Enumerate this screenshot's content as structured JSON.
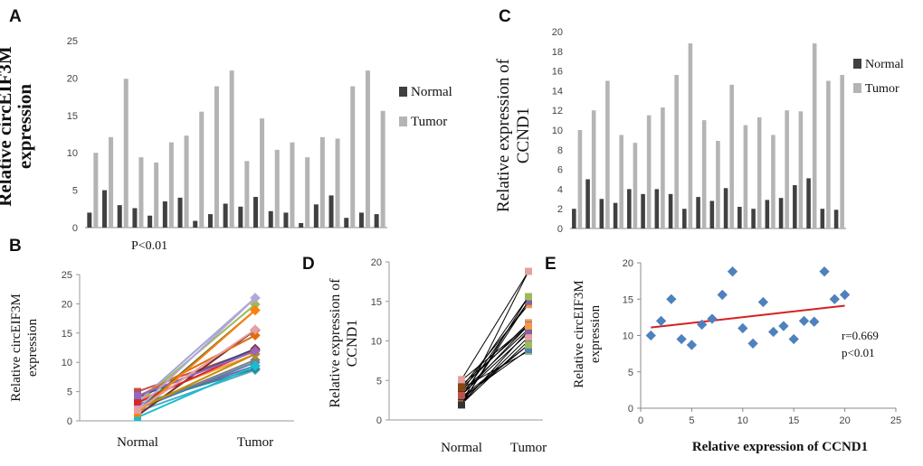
{
  "figure": {
    "panel_labels": [
      "A",
      "B",
      "C",
      "D",
      "E"
    ]
  },
  "chart_data": [
    {
      "id": "A",
      "type": "bar",
      "ylabel": "Relative  circEIF3M expression",
      "ylim": [
        0,
        25
      ],
      "yticks": [
        0,
        5,
        10,
        15,
        20,
        25
      ],
      "annotation": "P<0.01",
      "legend_position": "right",
      "series": [
        {
          "name": "Normal",
          "color": "#404040",
          "values": [
            2,
            5,
            3,
            2.6,
            1.6,
            3.5,
            4,
            0.9,
            1.8,
            3.2,
            2.8,
            4.1,
            2.2,
            2,
            0.6,
            3.1,
            4.3,
            1.3,
            2,
            1.8
          ]
        },
        {
          "name": "Tumor",
          "color": "#b4b4b4",
          "values": [
            10,
            12.1,
            19.9,
            9.4,
            8.7,
            11.4,
            12.3,
            15.5,
            18.9,
            21,
            8.9,
            14.6,
            10.4,
            11.4,
            9.4,
            12.1,
            11.9,
            18.9,
            21,
            15.6
          ]
        }
      ]
    },
    {
      "id": "B",
      "type": "line",
      "ylabel": "Relative  circEIF3M expression",
      "categories": [
        "Normal",
        "Tumor"
      ],
      "ylim": [
        0,
        25
      ],
      "yticks": [
        0,
        5,
        10,
        15,
        20,
        25
      ],
      "paired_values": [
        {
          "normal": 2,
          "tumor": 10,
          "color": "#4f81bd"
        },
        {
          "normal": 5,
          "tumor": 12.1,
          "color": "#c0504d"
        },
        {
          "normal": 3,
          "tumor": 19.9,
          "color": "#9bbb59"
        },
        {
          "normal": 2.6,
          "tumor": 9.4,
          "color": "#8064a2"
        },
        {
          "normal": 1.6,
          "tumor": 8.7,
          "color": "#4bacc6"
        },
        {
          "normal": 3.5,
          "tumor": 11.4,
          "color": "#f79646"
        },
        {
          "normal": 4,
          "tumor": 12.3,
          "color": "#2c4d75"
        },
        {
          "normal": 0.9,
          "tumor": 15.5,
          "color": "#772c2a"
        },
        {
          "normal": 1.8,
          "tumor": 18.9,
          "color": "#5f7530"
        },
        {
          "normal": 3.2,
          "tumor": 21,
          "color": "#a5a5d8"
        },
        {
          "normal": 2.8,
          "tumor": 8.9,
          "color": "#31859c"
        },
        {
          "normal": 4.1,
          "tumor": 14.6,
          "color": "#e46c0a"
        },
        {
          "normal": 2.2,
          "tumor": 10.4,
          "color": "#7f7f7f"
        },
        {
          "normal": 2,
          "tumor": 11.4,
          "color": "#c09100"
        },
        {
          "normal": 0.6,
          "tumor": 9.4,
          "color": "#17becf"
        },
        {
          "normal": 3.1,
          "tumor": 12.1,
          "color": "#d62728"
        },
        {
          "normal": 4.3,
          "tumor": 11.9,
          "color": "#9467bd"
        },
        {
          "normal": 1.3,
          "tumor": 18.9,
          "color": "#ff7f0e"
        },
        {
          "normal": 2,
          "tumor": 21,
          "color": "#b5a6d6"
        },
        {
          "normal": 1.8,
          "tumor": 15.6,
          "color": "#e6a0a0"
        }
      ]
    },
    {
      "id": "C",
      "type": "bar",
      "ylabel": "Relative expression of CCND1",
      "ylim": [
        0,
        20
      ],
      "yticks": [
        0,
        2,
        4,
        6,
        8,
        10,
        12,
        14,
        16,
        18,
        20
      ],
      "legend_position": "right",
      "series": [
        {
          "name": "Normal",
          "color": "#404040",
          "values": [
            2,
            5,
            3,
            2.6,
            4,
            3.5,
            4,
            3.5,
            2,
            3.2,
            2.8,
            4.1,
            2.2,
            2,
            2.9,
            3.1,
            4.4,
            5.1,
            2,
            1.9
          ]
        },
        {
          "name": "Tumor",
          "color": "#b4b4b4",
          "values": [
            10,
            12,
            15,
            9.5,
            8.7,
            11.5,
            12.3,
            15.6,
            18.8,
            11,
            8.9,
            14.6,
            10.5,
            11.3,
            9.5,
            12,
            11.9,
            18.8,
            15,
            15.6
          ]
        }
      ]
    },
    {
      "id": "D",
      "type": "line",
      "ylabel": "Relative expression of CCND1",
      "categories": [
        "Normal",
        "Tumor"
      ],
      "ylim": [
        0,
        20
      ],
      "yticks": [
        0,
        5,
        10,
        15,
        20
      ],
      "line_color": "#000000",
      "paired_values": [
        {
          "normal": 2,
          "tumor": 10
        },
        {
          "normal": 5,
          "tumor": 12
        },
        {
          "normal": 3,
          "tumor": 15
        },
        {
          "normal": 2.6,
          "tumor": 9.5
        },
        {
          "normal": 4,
          "tumor": 8.7
        },
        {
          "normal": 3.5,
          "tumor": 11.5
        },
        {
          "normal": 4,
          "tumor": 12.3
        },
        {
          "normal": 3.5,
          "tumor": 15.6
        },
        {
          "normal": 2,
          "tumor": 18.8
        },
        {
          "normal": 3.2,
          "tumor": 11
        },
        {
          "normal": 2.8,
          "tumor": 8.9
        },
        {
          "normal": 4.1,
          "tumor": 14.6
        },
        {
          "normal": 2.2,
          "tumor": 10.5
        },
        {
          "normal": 2,
          "tumor": 11.3
        },
        {
          "normal": 2.9,
          "tumor": 9.5
        },
        {
          "normal": 3.1,
          "tumor": 12
        },
        {
          "normal": 4.4,
          "tumor": 11.9
        },
        {
          "normal": 5.1,
          "tumor": 18.8
        },
        {
          "normal": 2,
          "tumor": 15
        },
        {
          "normal": 1.9,
          "tumor": 15.6
        }
      ]
    },
    {
      "id": "E",
      "type": "scatter",
      "xlabel": "Relative expression  of CCND1",
      "ylabel": "Relative  circEIF3M expression",
      "xlim": [
        0,
        25
      ],
      "ylim": [
        0,
        20
      ],
      "xticks": [
        0,
        5,
        10,
        15,
        20,
        25
      ],
      "yticks": [
        0,
        5,
        10,
        15,
        20
      ],
      "marker_color": "#4f81bd",
      "trendline": {
        "x": [
          1,
          20
        ],
        "y": [
          11.1,
          14.1
        ],
        "color": "#d62020"
      },
      "annotation_r": "r=0.669",
      "annotation_p": "p<0.01",
      "x": [
        1,
        2,
        3,
        4,
        5,
        6,
        7,
        8,
        9,
        10,
        11,
        12,
        13,
        14,
        15,
        16,
        17,
        18,
        19,
        20
      ],
      "y": [
        10,
        12,
        15,
        9.5,
        8.7,
        11.5,
        12.3,
        15.6,
        18.8,
        11,
        8.9,
        14.6,
        10.5,
        11.3,
        9.5,
        12,
        11.9,
        18.8,
        15,
        15.6
      ]
    }
  ]
}
